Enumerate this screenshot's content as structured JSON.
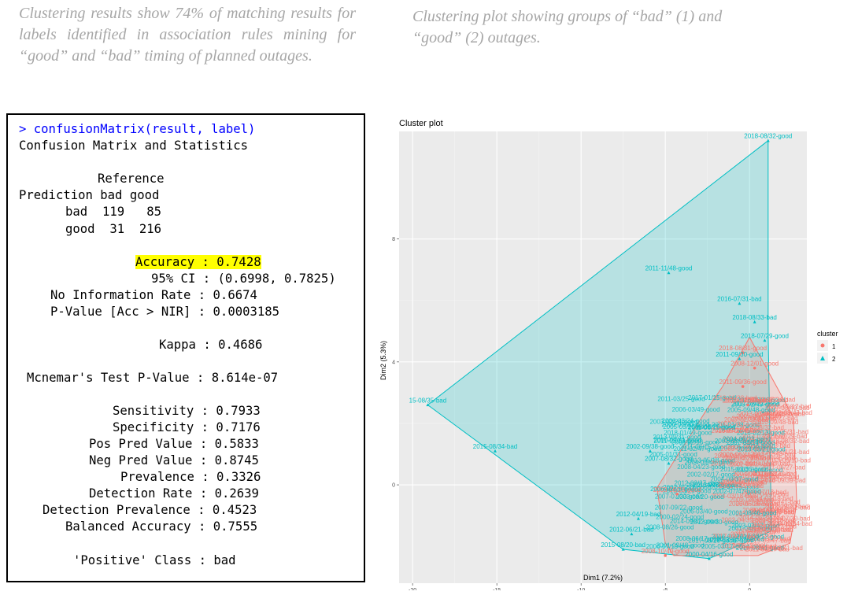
{
  "captions": {
    "left": "Clustering results show 74% of matching results for labels identified in association rules mining for “good” and “bad” timing of planned outages.",
    "right": "Clustering plot showing groups of “bad” (1) and “good” (2) outages."
  },
  "console": {
    "command_prompt": ">",
    "command": "confusionMatrix(result, label)",
    "heading": "Confusion Matrix and Statistics",
    "reference_header": "Reference",
    "matrix_header": "Prediction bad good",
    "row_bad": "bad  119   85",
    "row_good": "good  31  216",
    "accuracy": "Accuracy : 0.7428",
    "ci": "95% CI : (0.6998, 0.7825)",
    "nir": "No Information Rate : 0.6674",
    "pvalue": "P-Value [Acc > NIR] : 0.0003185",
    "kappa": "Kappa : 0.4686",
    "mcnemar": "Mcnemar's Test P-Value : 8.614e-07",
    "sensitivity": "Sensitivity : 0.7933",
    "specificity": "Specificity : 0.7176",
    "ppv": "Pos Pred Value : 0.5833",
    "npv": "Neg Pred Value : 0.8745",
    "prevalence": "Prevalence : 0.3326",
    "detection_rate": "Detection Rate : 0.2639",
    "detection_prevalence": "Detection Prevalence : 0.4523",
    "balanced_accuracy": "Balanced Accuracy : 0.7555",
    "positive_class": "'Positive' Class : bad"
  },
  "colors": {
    "cluster1": "#f8766d",
    "cluster2": "#00bfc4",
    "highlight": "#ffff00",
    "command": "#0000ff",
    "panel_bg": "#ebebeb"
  },
  "chart_data": {
    "type": "scatter",
    "title": "Cluster plot",
    "xlabel": "Dim1 (7.2%)",
    "ylabel": "Dim2 (5.3%)",
    "xlim": [
      -20.8,
      3.4
    ],
    "ylim": [
      -3.2,
      11.5
    ],
    "xticks": [
      -20,
      -15,
      -10,
      -5,
      0
    ],
    "yticks": [
      0,
      4,
      8
    ],
    "legend": {
      "title": "cluster",
      "position": "right",
      "entries": [
        "1",
        "2"
      ]
    },
    "hull_cluster2": [
      [
        1.1,
        11.2
      ],
      [
        1.1,
        5.0
      ],
      [
        1.3,
        -1.5
      ],
      [
        -2.4,
        -2.4
      ],
      [
        -7.5,
        -2.1
      ],
      [
        -19.1,
        2.6
      ]
    ],
    "hull_cluster1": [
      [
        -1.6,
        3.2
      ],
      [
        0.0,
        4.8
      ],
      [
        2.6,
        2.2
      ],
      [
        2.8,
        -0.6
      ],
      [
        2.4,
        -1.9
      ],
      [
        0.5,
        -2.3
      ],
      [
        -4.5,
        -2.3
      ],
      [
        -5.0,
        -1.9
      ],
      [
        -5.5,
        -0.1
      ],
      [
        -2.6,
        2.4
      ]
    ],
    "labeled_points": [
      {
        "x": 1.1,
        "y": 11.2,
        "label": "2018-08/32-good",
        "cluster": "2"
      },
      {
        "x": -4.8,
        "y": 6.9,
        "label": "2011-11/48-good",
        "cluster": "2"
      },
      {
        "x": -19.1,
        "y": 2.6,
        "label": "15-08/35-bad",
        "cluster": "2"
      },
      {
        "x": -15.1,
        "y": 1.1,
        "label": "2015-08/34-bad",
        "cluster": "2"
      },
      {
        "x": -5.9,
        "y": 1.1,
        "label": "2002-09/38-good",
        "cluster": "2"
      },
      {
        "x": -4.8,
        "y": 0.7,
        "label": "2007-08/32-good",
        "cluster": "2"
      },
      {
        "x": -0.6,
        "y": 5.9,
        "label": "2016-07/31-bad",
        "cluster": "2"
      },
      {
        "x": 0.3,
        "y": 5.3,
        "label": "2018-08/33-bad",
        "cluster": "2"
      },
      {
        "x": 0.9,
        "y": 4.7,
        "label": "2018-07/29-good",
        "cluster": "2"
      },
      {
        "x": -0.4,
        "y": 4.3,
        "label": "2018-08/31-good",
        "cluster": "1"
      },
      {
        "x": -0.6,
        "y": 4.1,
        "label": "2011-09/30-good",
        "cluster": "2"
      },
      {
        "x": 0.3,
        "y": 3.8,
        "label": "2008-12/01-good",
        "cluster": "1"
      },
      {
        "x": -0.4,
        "y": 3.2,
        "label": "2011-09/36-good",
        "cluster": "1"
      },
      {
        "x": -0.1,
        "y": 2.6,
        "label": "2016-04/16-good",
        "cluster": "1"
      },
      {
        "x": -2.4,
        "y": -2.4,
        "label": "2000-04/16-good",
        "cluster": "2"
      },
      {
        "x": -5.0,
        "y": -2.3,
        "label": "2008-10/40-good",
        "cluster": "1"
      },
      {
        "x": -7.5,
        "y": -2.1,
        "label": "2015-08/20-bad",
        "cluster": "2"
      },
      {
        "x": -7.0,
        "y": -1.6,
        "label": "2012-06/21-bad",
        "cluster": "2"
      },
      {
        "x": -6.6,
        "y": -1.1,
        "label": "2012-04/19-bad",
        "cluster": "2"
      },
      {
        "x": -4.3,
        "y": -0.3,
        "label": "2003-06/28-good",
        "cluster": "1"
      }
    ]
  }
}
